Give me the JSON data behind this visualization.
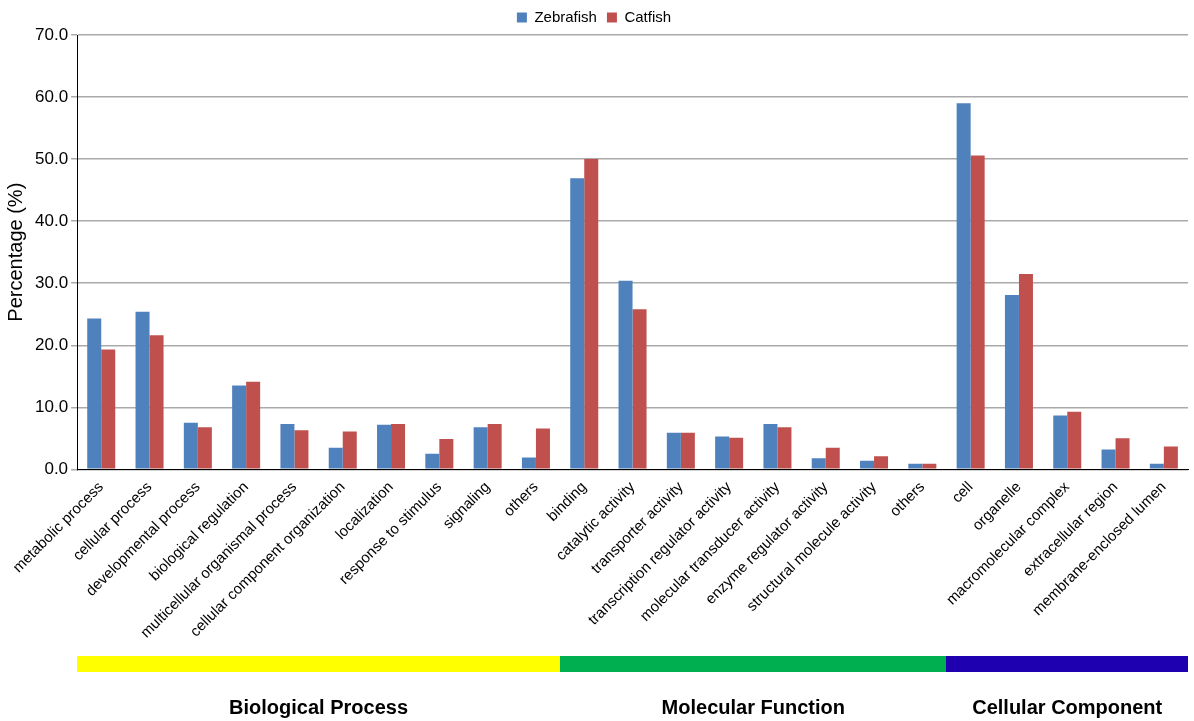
{
  "chart_data": {
    "type": "bar",
    "ylabel": "Percentage (%)",
    "categories": [
      "metabolic process",
      "cellular process",
      "developmental process",
      "biological regulation",
      "multicellular organismal process",
      "cellular component organization",
      "localization",
      "response to stimulus",
      "signaling",
      "others",
      "binding",
      "catalytic activity",
      "transporter activity",
      "transcription regulator activity",
      "molecular transducer activity",
      "enzyme regulator activity",
      "structural molecule activity",
      "others",
      "cell",
      "organelle",
      "macromolecular complex",
      "extracellular region",
      "membrane-enclosed lumen"
    ],
    "series": [
      {
        "name": "Zebrafish",
        "color": "#4f81bd",
        "values": [
          24.3,
          25.4,
          7.5,
          13.5,
          7.3,
          3.5,
          7.2,
          2.5,
          6.8,
          1.9,
          46.9,
          30.4,
          5.9,
          5.3,
          7.3,
          1.8,
          1.4,
          0.9,
          59.0,
          28.1,
          8.7,
          3.2,
          0.9
        ]
      },
      {
        "name": "Catfish",
        "color": "#c0504d",
        "values": [
          19.3,
          21.6,
          6.8,
          14.1,
          6.3,
          6.1,
          7.3,
          4.9,
          7.3,
          6.6,
          50.0,
          25.8,
          5.9,
          5.1,
          6.8,
          3.5,
          2.1,
          0.9,
          50.6,
          31.5,
          9.3,
          5.0,
          3.7
        ]
      }
    ],
    "ylim": [
      0,
      70
    ],
    "yticks": [
      {
        "value": 0,
        "label": "0.0"
      },
      {
        "value": 10,
        "label": "10.0"
      },
      {
        "value": 20,
        "label": "20.0"
      },
      {
        "value": 30,
        "label": "30.0"
      },
      {
        "value": 40,
        "label": "40.0"
      },
      {
        "value": 50,
        "label": "50.0"
      },
      {
        "value": 60,
        "label": "60.0"
      },
      {
        "value": 70,
        "label": "70.0"
      }
    ],
    "grid": "y",
    "legend": "top",
    "annotations": [
      "Biological Process",
      "Molecular Function",
      "Cellular Component"
    ]
  }
}
